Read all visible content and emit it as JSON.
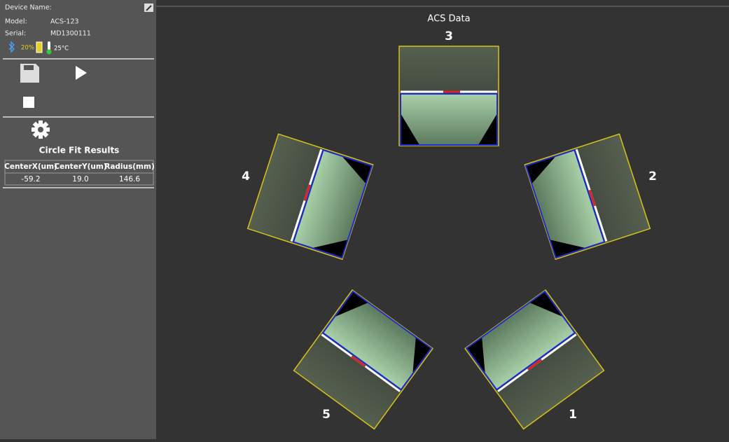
{
  "device": {
    "name_label": "Device Name:",
    "model_label": "Model:",
    "model": "ACS-123",
    "serial_label": "Serial:",
    "serial": "MD1300111",
    "battery": "20%",
    "temperature": "25°C"
  },
  "results": {
    "title": "Circle Fit Results",
    "table": {
      "header": [
        "CenterX(um)",
        "CenterY(um)",
        "Radius(mm)"
      ],
      "rows": [
        [
          "-59.2",
          "19.0",
          "146.6"
        ]
      ]
    }
  },
  "view": {
    "title": "ACS Data",
    "images": [
      {
        "label": "1"
      },
      {
        "label": "2"
      },
      {
        "label": "3"
      },
      {
        "label": "4"
      },
      {
        "label": "5"
      }
    ]
  }
}
